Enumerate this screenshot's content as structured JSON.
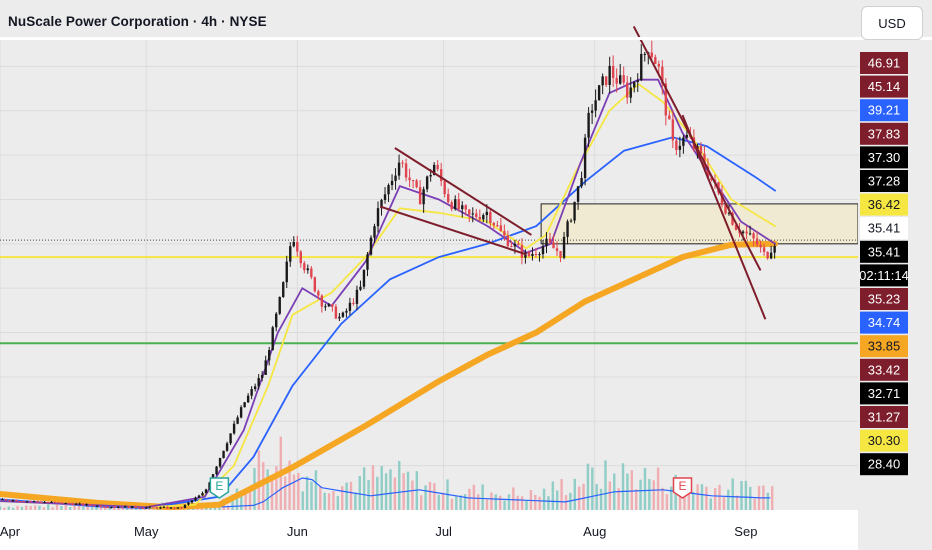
{
  "header": {
    "title": "NuScale Power Corporation · 4h · NYSE",
    "currency_button": "USD"
  },
  "chart_data": {
    "type": "candlestick",
    "symbol": "NuScale Power Corporation",
    "interval": "4h",
    "exchange": "NYSE",
    "x_axis": {
      "tick_labels": [
        "Apr",
        "May",
        "Jun",
        "Jul",
        "Aug",
        "Sep"
      ],
      "tick_days": [
        0,
        30,
        61,
        91,
        122,
        153
      ],
      "range_days": [
        0,
        176
      ]
    },
    "y_axis": {
      "range": [
        5,
        60
      ]
    },
    "price_path": [
      [
        0,
        6.2
      ],
      [
        12,
        5.8
      ],
      [
        22,
        5.4
      ],
      [
        30,
        5.3
      ],
      [
        37,
        5.2
      ],
      [
        42,
        7.0
      ],
      [
        46,
        12.0
      ],
      [
        50,
        17.0
      ],
      [
        54,
        20.5
      ],
      [
        58,
        30.0
      ],
      [
        60,
        36.2
      ],
      [
        62,
        33.0
      ],
      [
        66,
        28.5
      ],
      [
        70,
        26.5
      ],
      [
        74,
        30.0
      ],
      [
        77,
        38.0
      ],
      [
        82,
        44.5
      ],
      [
        86,
        40.0
      ],
      [
        89,
        44.0
      ],
      [
        92,
        40.0
      ],
      [
        96,
        38.0
      ],
      [
        100,
        38.6
      ],
      [
        103,
        36.0
      ],
      [
        108,
        33.5
      ],
      [
        112,
        35.0
      ],
      [
        115,
        34.0
      ],
      [
        119,
        42.0
      ],
      [
        121,
        50.0
      ],
      [
        125,
        54.5
      ],
      [
        129,
        52.0
      ],
      [
        133,
        57.5
      ],
      [
        135,
        55.0
      ],
      [
        138,
        46.0
      ],
      [
        141,
        47.0
      ],
      [
        144,
        44.5
      ],
      [
        147,
        41.0
      ],
      [
        151,
        37.0
      ],
      [
        155,
        35.2
      ],
      [
        157,
        33.5
      ],
      [
        159,
        35.41
      ]
    ],
    "volume_series": [
      [
        0,
        0.05
      ],
      [
        40,
        0.08
      ],
      [
        47,
        0.12
      ],
      [
        52,
        0.55
      ],
      [
        57,
        0.85
      ],
      [
        60,
        0.55
      ],
      [
        70,
        0.35
      ],
      [
        80,
        0.5
      ],
      [
        90,
        0.3
      ],
      [
        100,
        0.25
      ],
      [
        110,
        0.2
      ],
      [
        120,
        0.45
      ],
      [
        130,
        0.5
      ],
      [
        140,
        0.35
      ],
      [
        150,
        0.3
      ],
      [
        159,
        0.3
      ]
    ],
    "moving_averages": [
      {
        "color": "#f5a623",
        "points": [
          [
            0,
            6.8
          ],
          [
            20,
            5.8
          ],
          [
            35,
            5.3
          ],
          [
            45,
            5.6
          ],
          [
            60,
            9.8
          ],
          [
            75,
            14.5
          ],
          [
            90,
            19.5
          ],
          [
            100,
            22.5
          ],
          [
            110,
            25.0
          ],
          [
            120,
            28.5
          ],
          [
            130,
            31.0
          ],
          [
            140,
            33.5
          ],
          [
            150,
            34.9
          ],
          [
            159,
            35.0
          ]
        ]
      },
      {
        "color": "#2962ff",
        "points": [
          [
            0,
            6.2
          ],
          [
            20,
            5.4
          ],
          [
            30,
            5.2
          ],
          [
            45,
            6.5
          ],
          [
            52,
            11.0
          ],
          [
            60,
            19.0
          ],
          [
            70,
            26.0
          ],
          [
            80,
            31.0
          ],
          [
            90,
            33.5
          ],
          [
            100,
            35.0
          ],
          [
            110,
            37.0
          ],
          [
            120,
            42.0
          ],
          [
            128,
            45.5
          ],
          [
            138,
            47.0
          ],
          [
            145,
            46.0
          ],
          [
            155,
            42.5
          ],
          [
            159,
            41.0
          ]
        ]
      },
      {
        "color": "#f5e642",
        "points": [
          [
            0,
            6.0
          ],
          [
            30,
            5.3
          ],
          [
            40,
            5.6
          ],
          [
            48,
            10.0
          ],
          [
            55,
            19.0
          ],
          [
            60,
            27.0
          ],
          [
            68,
            29.5
          ],
          [
            75,
            33.5
          ],
          [
            82,
            39.0
          ],
          [
            90,
            38.5
          ],
          [
            100,
            37.5
          ],
          [
            108,
            34.5
          ],
          [
            112,
            36.0
          ],
          [
            118,
            43.0
          ],
          [
            125,
            50.0
          ],
          [
            131,
            53.0
          ],
          [
            136,
            51.0
          ],
          [
            142,
            47.0
          ],
          [
            150,
            40.0
          ],
          [
            159,
            37.0
          ]
        ]
      },
      {
        "color": "#7b3fb5",
        "points": [
          [
            0,
            6.0
          ],
          [
            30,
            5.3
          ],
          [
            42,
            6.5
          ],
          [
            50,
            14.0
          ],
          [
            57,
            25.0
          ],
          [
            62,
            30.0
          ],
          [
            68,
            28.0
          ],
          [
            75,
            33.0
          ],
          [
            82,
            41.5
          ],
          [
            90,
            40.0
          ],
          [
            100,
            37.0
          ],
          [
            108,
            34.0
          ],
          [
            113,
            35.0
          ],
          [
            119,
            44.0
          ],
          [
            125,
            52.0
          ],
          [
            131,
            53.5
          ],
          [
            135,
            53.5
          ],
          [
            140,
            47.5
          ],
          [
            146,
            42.5
          ],
          [
            152,
            37.5
          ],
          [
            159,
            35.0
          ]
        ]
      }
    ],
    "horizontal_levels": [
      {
        "value": 33.5,
        "color": "#f5e642"
      },
      {
        "value": 23.8,
        "color": "#4caf50"
      },
      {
        "value": 35.41,
        "color": "#444444",
        "style": "dotted"
      }
    ],
    "range_box": {
      "from_day": 111,
      "to_day": 176,
      "low": 35.0,
      "high": 39.5
    },
    "trendlines": [
      {
        "points": [
          [
            81,
            45.8
          ],
          [
            109,
            36.0
          ]
        ]
      },
      {
        "points": [
          [
            78,
            39.2
          ],
          [
            108,
            33.8
          ]
        ]
      },
      {
        "points": [
          [
            130,
            59.5
          ],
          [
            156,
            32.0
          ]
        ]
      },
      {
        "points": [
          [
            140,
            49.5
          ],
          [
            157,
            26.5
          ]
        ]
      }
    ],
    "price_labels": [
      {
        "value": "46.91",
        "bg": "#7e1d2b",
        "fg": "#ffffff"
      },
      {
        "value": "45.14",
        "bg": "#7e1d2b",
        "fg": "#ffffff"
      },
      {
        "value": "39.21",
        "bg": "#2962ff",
        "fg": "#ffffff"
      },
      {
        "value": "37.83",
        "bg": "#7e1d2b",
        "fg": "#ffffff"
      },
      {
        "value": "37.30",
        "bg": "#000000",
        "fg": "#ffffff"
      },
      {
        "value": "37.28",
        "bg": "#000000",
        "fg": "#ffffff"
      },
      {
        "value": "36.42",
        "bg": "#f5e642",
        "fg": "#131722"
      },
      {
        "value": "35.41",
        "bg": "#ffffff",
        "fg": "#131722"
      },
      {
        "value": "35.41",
        "bg": "#000000",
        "fg": "#ffffff"
      },
      {
        "value": "02:11:14",
        "bg": "#000000",
        "fg": "#ffffff"
      },
      {
        "value": "35.23",
        "bg": "#7e1d2b",
        "fg": "#ffffff"
      },
      {
        "value": "34.74",
        "bg": "#2962ff",
        "fg": "#ffffff"
      },
      {
        "value": "33.85",
        "bg": "#f5a623",
        "fg": "#131722"
      },
      {
        "value": "33.42",
        "bg": "#7e1d2b",
        "fg": "#ffffff"
      },
      {
        "value": "32.71",
        "bg": "#000000",
        "fg": "#ffffff"
      },
      {
        "value": "31.27",
        "bg": "#7e1d2b",
        "fg": "#ffffff"
      },
      {
        "value": "30.30",
        "bg": "#f5e642",
        "fg": "#131722"
      },
      {
        "value": "28.40",
        "bg": "#000000",
        "fg": "#ffffff"
      }
    ],
    "earnings_markers": [
      {
        "day": 45,
        "label": "E",
        "color": "#26a69a"
      },
      {
        "day": 140,
        "label": "E",
        "color": "#e0444f"
      }
    ],
    "colors": {
      "up": "#1a1a1a",
      "down": "#e0444f",
      "background": "#ececec",
      "range_fill": "#f1ead3"
    }
  }
}
